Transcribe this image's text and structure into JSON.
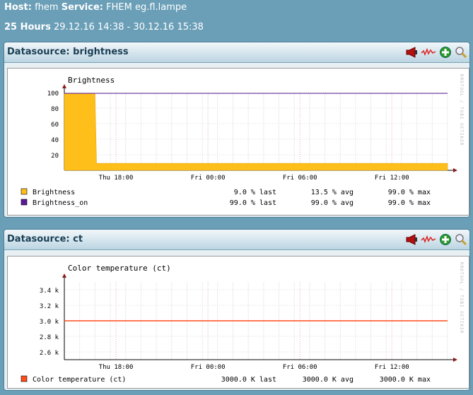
{
  "header": {
    "host_label": "Host:",
    "host_value": "fhem",
    "service_label": "Service:",
    "service_value": "FHEM eg.fl.lampe",
    "range_label": "25 Hours",
    "range_value": "29.12.16 14:38 - 30.12.16 15:38"
  },
  "icons": [
    "megaphone-icon",
    "graph-icon",
    "add-icon",
    "zoom-icon"
  ],
  "watermark": "RRDTOOL / TOBI OETIKER",
  "panels": [
    {
      "head_label": "Datasource:",
      "head_name": "brightness",
      "chart": {
        "title": "Brightness",
        "y_ticks": [
          "100",
          "80",
          "60",
          "40",
          "20"
        ],
        "x_ticks": [
          "Thu 18:00",
          "Fri 00:00",
          "Fri 06:00",
          "Fri 12:00"
        ],
        "legend": [
          {
            "name": "Brightness",
            "last": "9.0 % last",
            "avg": "13.5 % avg",
            "max": "99.0 % max",
            "color": "#ffbf1a"
          },
          {
            "name": "Brightness_on",
            "last": "99.0 % last",
            "avg": "99.0 % avg",
            "max": "99.0 % max",
            "color": "#5a1a99"
          }
        ]
      }
    },
    {
      "head_label": "Datasource:",
      "head_name": "ct",
      "chart": {
        "title": "Color temperature (ct)",
        "y_ticks": [
          "3.4 k",
          "3.2 k",
          "3.0 k",
          "2.8 k",
          "2.6 k"
        ],
        "x_ticks": [
          "Thu 18:00",
          "Fri 00:00",
          "Fri 06:00",
          "Fri 12:00"
        ],
        "legend": [
          {
            "name": "Color temperature (ct)",
            "last": "3000.0 K last",
            "avg": "3000.0 K avg",
            "max": "3000.0 K max",
            "color": "#ff4d1a"
          }
        ]
      }
    }
  ],
  "chart_data": [
    {
      "type": "area",
      "title": "Brightness",
      "x_unit": "hours since start (14:38)",
      "x": [
        0,
        2,
        2.1,
        25
      ],
      "series": [
        {
          "name": "Brightness",
          "values": [
            99,
            99,
            9,
            9
          ]
        },
        {
          "name": "Brightness_on",
          "values": [
            99,
            99,
            99,
            99
          ]
        }
      ],
      "ylim": [
        0,
        100
      ],
      "grid": true,
      "legend": "bottom"
    },
    {
      "type": "line",
      "title": "Color temperature (ct)",
      "x": [
        0,
        25
      ],
      "series": [
        {
          "name": "Color temperature (ct)",
          "values": [
            3000,
            3000
          ]
        }
      ],
      "ylim": [
        2500,
        3500
      ],
      "grid": true,
      "legend": "bottom"
    }
  ]
}
